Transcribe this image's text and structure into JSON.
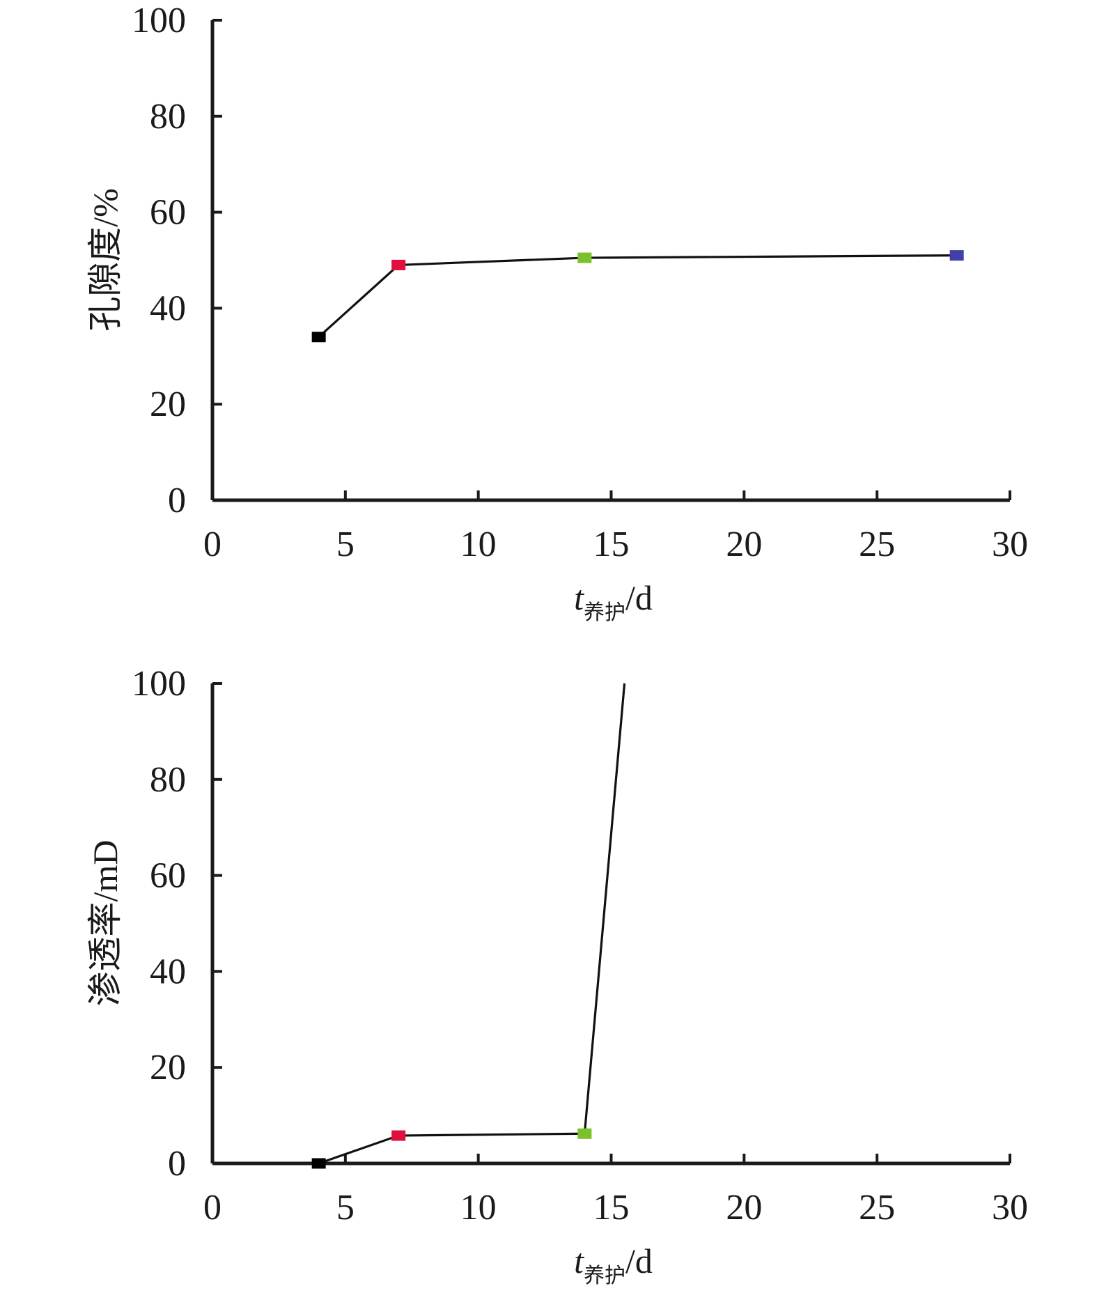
{
  "chart_data": [
    {
      "type": "line",
      "title": "",
      "xlabel": {
        "main": "t",
        "sub": "养护",
        "unit": "/d"
      },
      "ylabel": "孔隙度/%",
      "xlim": [
        0,
        30
      ],
      "ylim": [
        0,
        100
      ],
      "x_ticks": [
        "0",
        "5",
        "10",
        "15",
        "20",
        "25",
        "30"
      ],
      "y_ticks": [
        "0",
        "20",
        "40",
        "60",
        "80",
        "100"
      ],
      "grid": false,
      "legend": "none",
      "series": [
        {
          "x": [
            4,
            7,
            14,
            28
          ],
          "y": [
            34,
            49,
            50.5,
            51
          ]
        }
      ],
      "marker_colors": [
        "#000000",
        "#e0103c",
        "#7cc02c",
        "#4040a8"
      ]
    },
    {
      "type": "line",
      "title": "",
      "xlabel": {
        "main": "t",
        "sub": "养护",
        "unit": "/d"
      },
      "ylabel": "渗透率/mD",
      "xlim": [
        0,
        30
      ],
      "ylim": [
        0,
        100
      ],
      "x_ticks": [
        "0",
        "5",
        "10",
        "15",
        "20",
        "25",
        "30"
      ],
      "y_ticks": [
        "0",
        "20",
        "40",
        "60",
        "80",
        "100"
      ],
      "grid": false,
      "legend": "none",
      "series": [
        {
          "x": [
            4,
            7,
            14,
            15.5
          ],
          "y": [
            0,
            5.8,
            6.2,
            100
          ]
        }
      ],
      "marker_colors": [
        "#000000",
        "#e0103c",
        "#7cc02c"
      ]
    }
  ]
}
